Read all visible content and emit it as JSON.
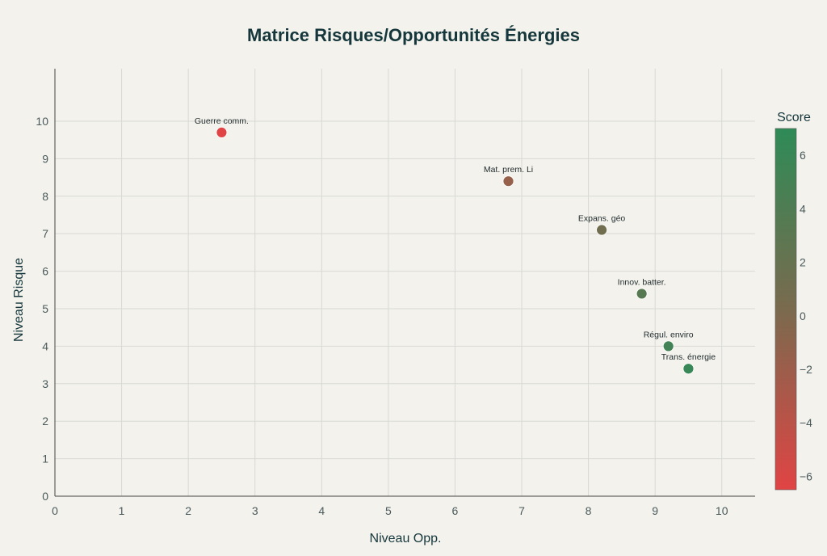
{
  "chart_data": {
    "type": "scatter",
    "title": "Matrice Risques/Opportunités Énergies",
    "xlabel": "Niveau Opp.",
    "ylabel": "Niveau Risque",
    "xlim": [
      0,
      10.5
    ],
    "ylim": [
      0,
      11.4
    ],
    "x_ticks": [
      0,
      1,
      2,
      3,
      4,
      5,
      6,
      7,
      8,
      9,
      10
    ],
    "y_ticks": [
      0,
      1,
      2,
      3,
      4,
      5,
      6,
      7,
      8,
      9,
      10
    ],
    "grid": true,
    "points": [
      {
        "label": "Guerre comm.",
        "x": 2.5,
        "y": 9.7,
        "score": -7.2
      },
      {
        "label": "Mat. prem. Li",
        "x": 6.8,
        "y": 8.4,
        "score": -1.6
      },
      {
        "label": "Expans. géo",
        "x": 8.2,
        "y": 7.1,
        "score": 1.1
      },
      {
        "label": "Innov. batter.",
        "x": 8.8,
        "y": 5.4,
        "score": 3.4
      },
      {
        "label": "Régul. enviro",
        "x": 9.2,
        "y": 4.0,
        "score": 5.2
      },
      {
        "label": "Trans. énergie",
        "x": 9.5,
        "y": 3.4,
        "score": 6.1
      }
    ],
    "colorbar": {
      "title": "Score",
      "min": -6.5,
      "max": 7,
      "ticks": [
        6,
        4,
        2,
        0,
        -2,
        -4,
        -6
      ],
      "tick_labels": [
        "6",
        "4",
        "2",
        "0",
        "−2",
        "−4",
        "−6"
      ],
      "color_low": "#e04444",
      "color_mid": "#7a6a4e",
      "color_high": "#2e8b57"
    }
  }
}
